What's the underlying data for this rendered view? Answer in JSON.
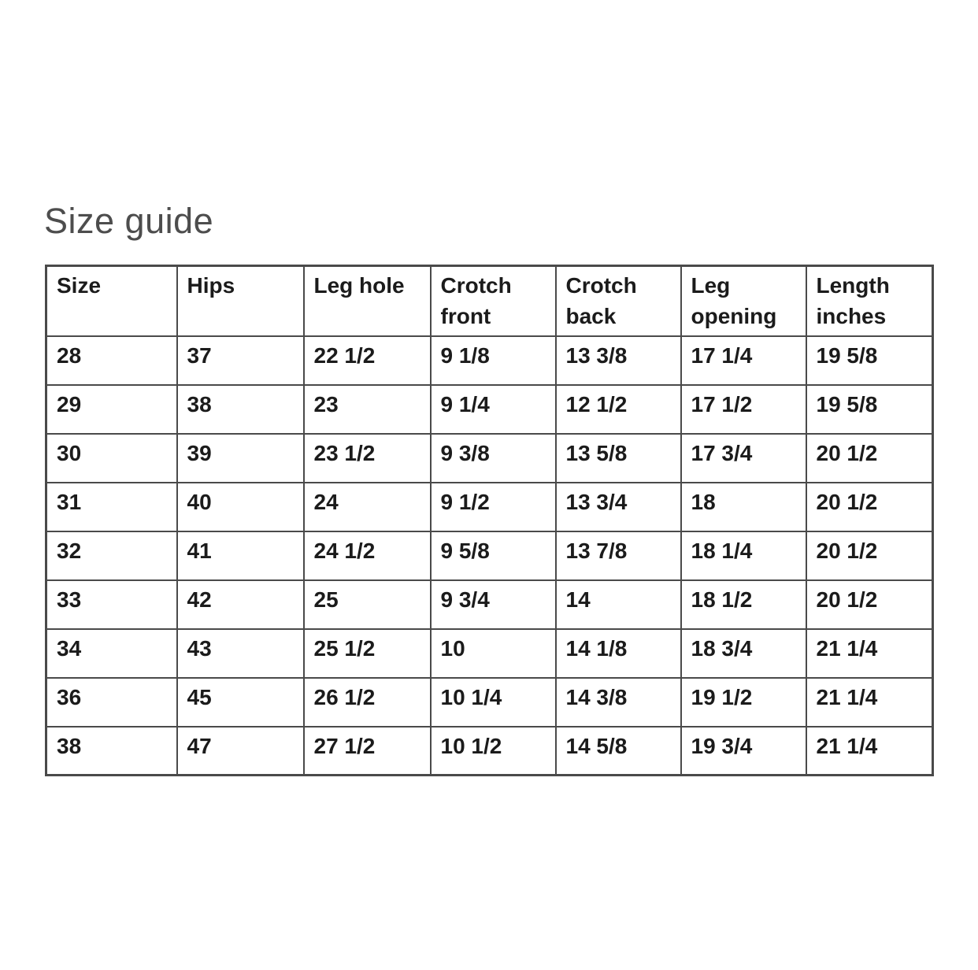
{
  "page": {
    "title": "Size guide"
  },
  "size_table": {
    "columns": [
      "Size",
      "Hips",
      "Leg hole",
      "Crotch front",
      "Crotch back",
      "Leg opening",
      "Length inches"
    ],
    "rows": [
      [
        "28",
        "37",
        "22 1/2",
        "9 1/8",
        "13 3/8",
        "17 1/4",
        "19 5/8"
      ],
      [
        "29",
        "38",
        "23",
        "9 1/4",
        "12 1/2",
        "17 1/2",
        "19 5/8"
      ],
      [
        "30",
        "39",
        "23 1/2",
        "9 3/8",
        "13 5/8",
        "17 3/4",
        "20 1/2"
      ],
      [
        "31",
        "40",
        "24",
        "9 1/2",
        "13 3/4",
        "18",
        "20 1/2"
      ],
      [
        "32",
        "41",
        "24 1/2",
        "9 5/8",
        "13 7/8",
        "18 1/4",
        "20 1/2"
      ],
      [
        "33",
        "42",
        "25",
        "9 3/4",
        "14",
        "18 1/2",
        "20 1/2"
      ],
      [
        "34",
        "43",
        "25 1/2",
        "10",
        "14 1/8",
        "18 3/4",
        "21 1/4"
      ],
      [
        "36",
        "45",
        "26 1/2",
        "10 1/4",
        "14 3/8",
        "19 1/2",
        "21 1/4"
      ],
      [
        "38",
        "47",
        "27 1/2",
        "10 1/2",
        "14 5/8",
        "19 3/4",
        "21 1/4"
      ]
    ]
  },
  "colors": {
    "background": "#ffffff",
    "title_color": "#4d4d4d",
    "text_color": "#1b1b1b",
    "border_color": "#4a4a4a"
  }
}
